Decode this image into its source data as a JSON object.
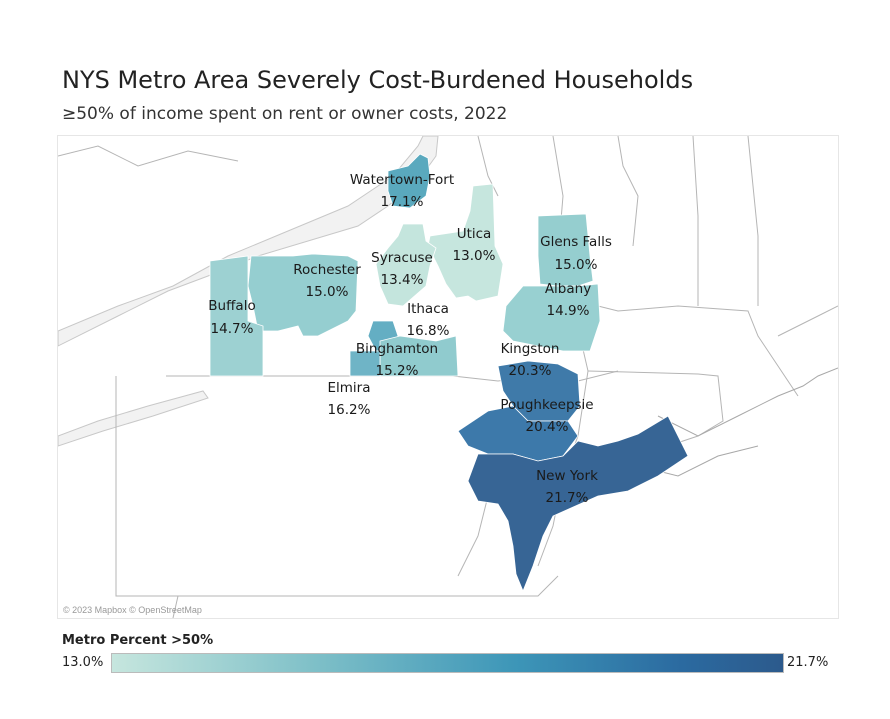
{
  "title": "NYS Metro Area Severely Cost-Burdened Households",
  "subtitle": "≥50% of income spent on rent or owner costs, 2022",
  "attribution": "© 2023 Mapbox © OpenStreetMap",
  "legend": {
    "title": "Metro Percent >50%",
    "min_label": "13.0%",
    "max_label": "21.7%",
    "min_value": 13.0,
    "max_value": 21.7,
    "color_low": "#c6e6de",
    "color_high": "#2c5a8c"
  },
  "regions": [
    {
      "name": "Watertown-Fort",
      "value_label": "17.1%",
      "value": 17.1
    },
    {
      "name": "Utica",
      "value_label": "13.0%",
      "value": 13.0
    },
    {
      "name": "Glens Falls",
      "value_label": "15.0%",
      "value": 15.0
    },
    {
      "name": "Rochester",
      "value_label": "15.0%",
      "value": 15.0
    },
    {
      "name": "Syracuse",
      "value_label": "13.4%",
      "value": 13.4
    },
    {
      "name": "Albany",
      "value_label": "14.9%",
      "value": 14.9
    },
    {
      "name": "Buffalo",
      "value_label": "14.7%",
      "value": 14.7
    },
    {
      "name": "Ithaca",
      "value_label": "16.8%",
      "value": 16.8
    },
    {
      "name": "Binghamton",
      "value_label": "15.2%",
      "value": 15.2
    },
    {
      "name": "Kingston",
      "value_label": "20.3%",
      "value": 20.3
    },
    {
      "name": "Elmira",
      "value_label": "16.2%",
      "value": 16.2
    },
    {
      "name": "Poughkeepsie",
      "value_label": "20.4%",
      "value": 20.4
    },
    {
      "name": "New York",
      "value_label": "21.7%",
      "value": 21.7
    }
  ]
}
